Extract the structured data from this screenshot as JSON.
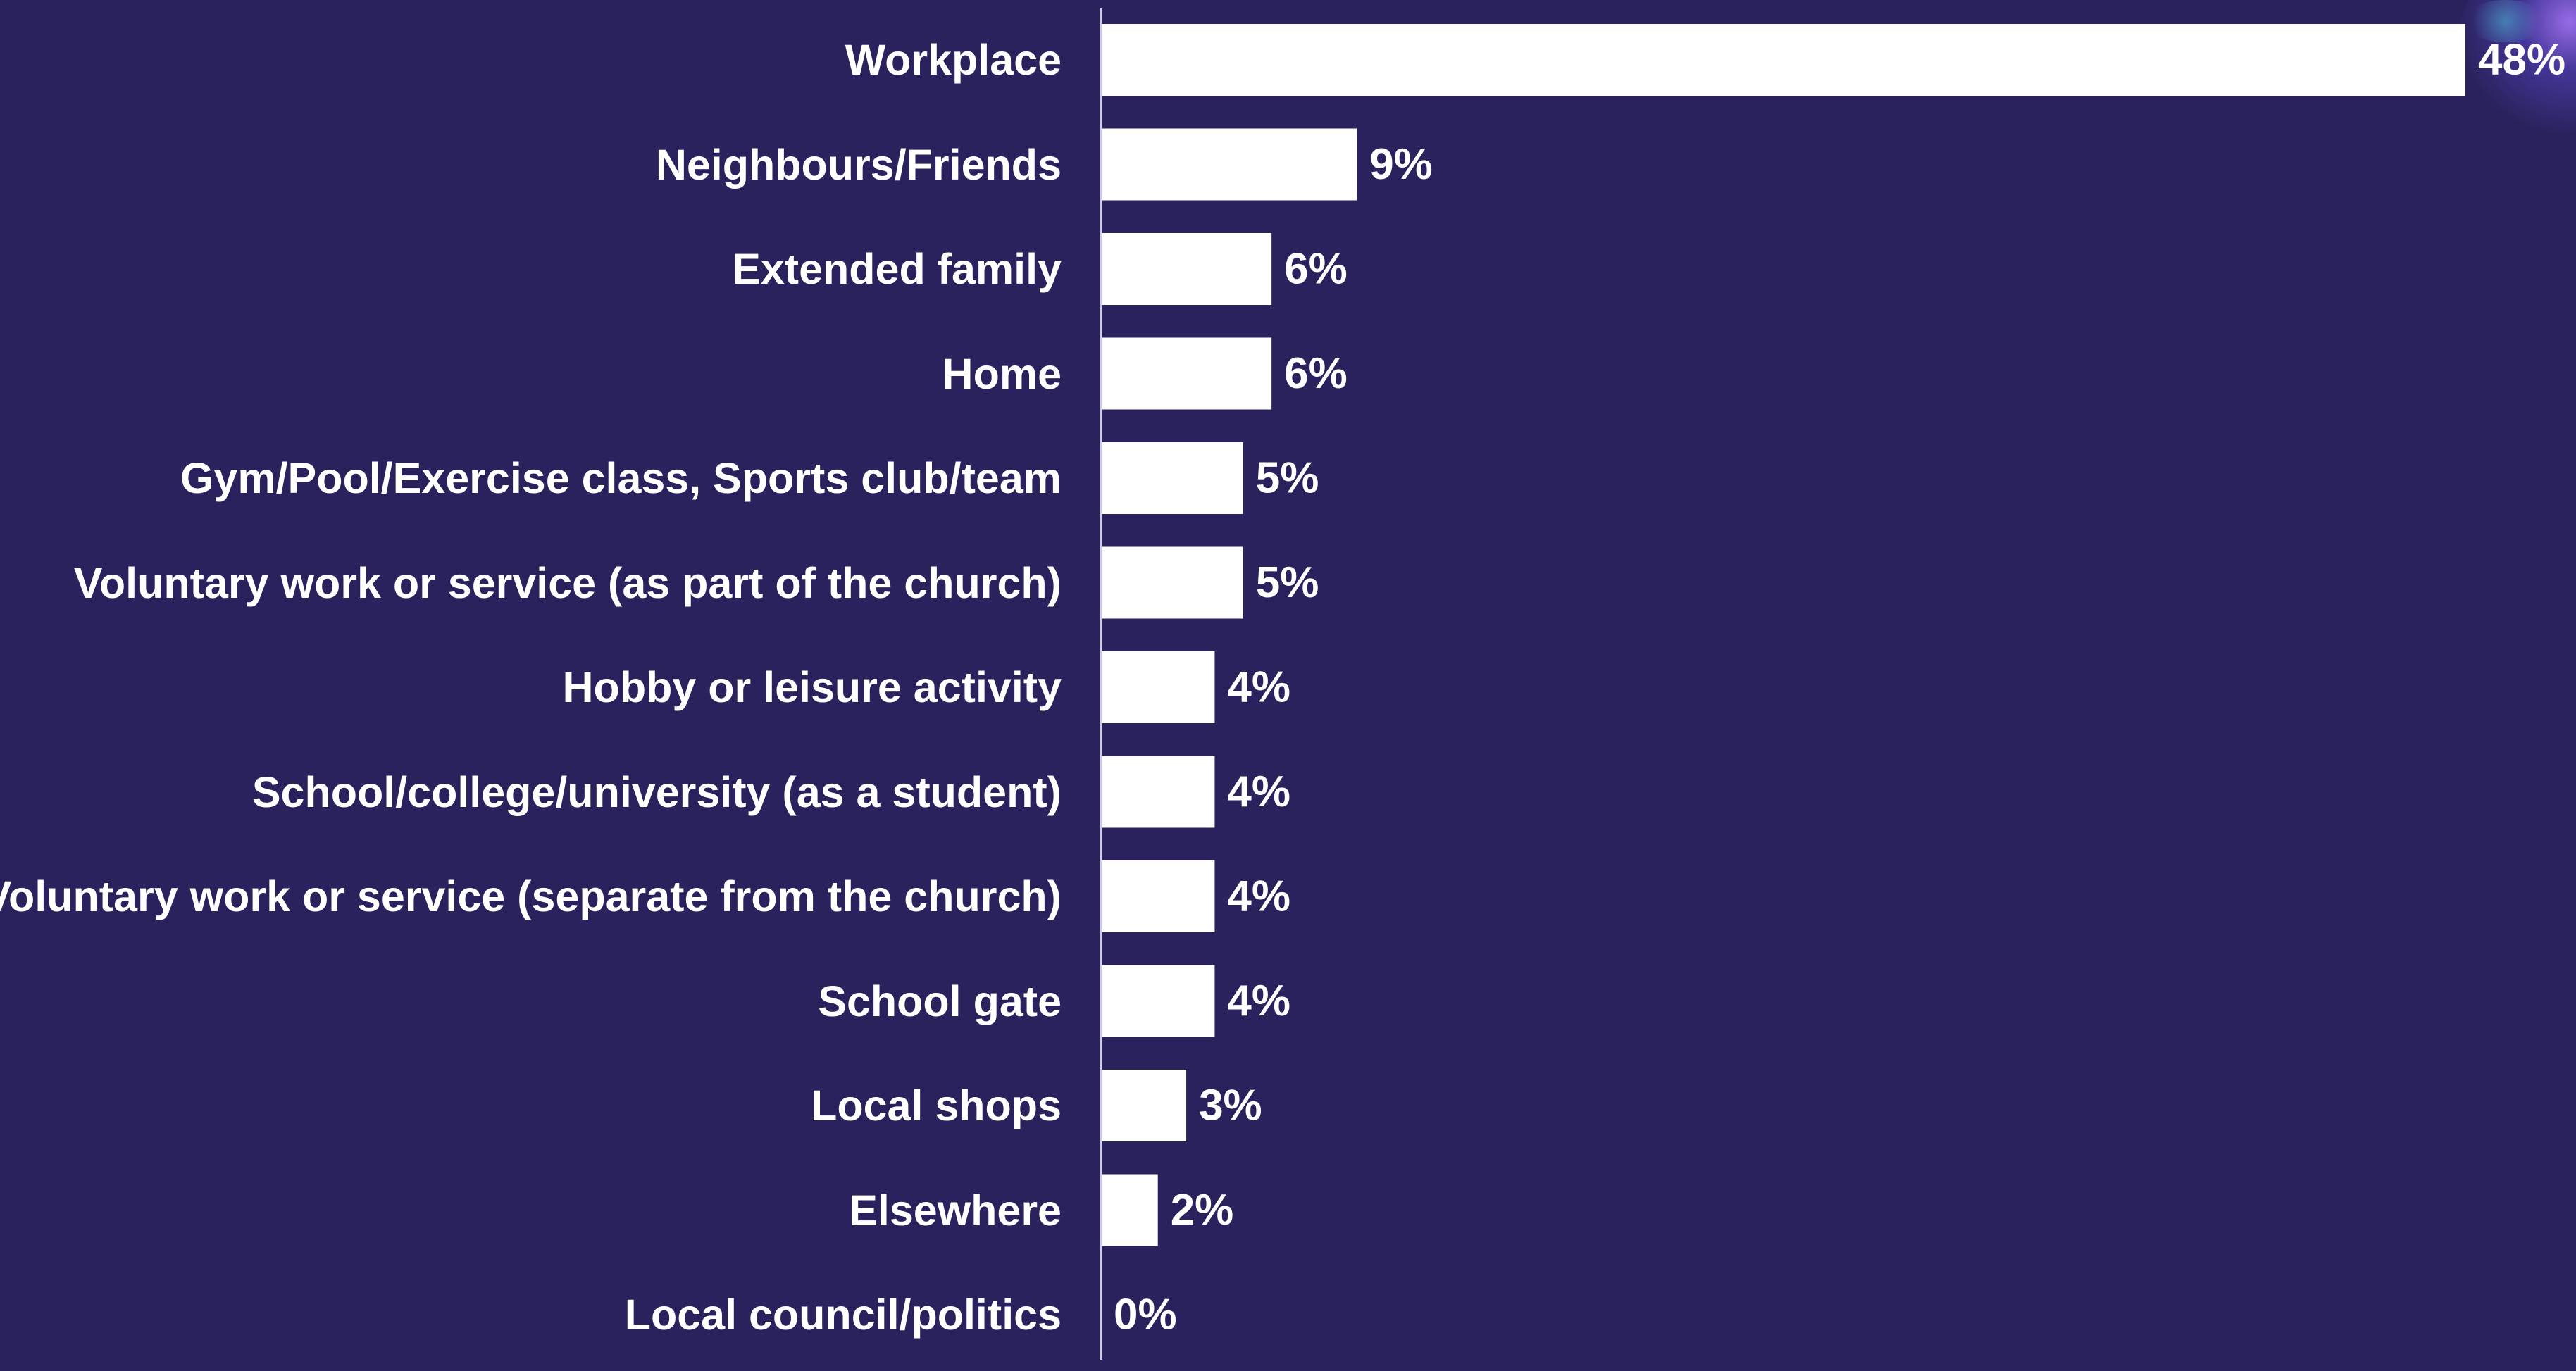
{
  "chart_data": {
    "type": "bar",
    "orientation": "horizontal",
    "categories": [
      "Workplace",
      "Neighbours/Friends",
      "Extended family",
      "Home ",
      "Gym/Pool/Exercise class, Sports club/team",
      "Voluntary work or service (as part of the church)",
      "Hobby or leisure activity",
      "School/college/university (as a student)",
      "Voluntary work or service (separate from the church)",
      "School gate",
      "Local shops",
      "Elsewhere",
      "Local council/politics"
    ],
    "values": [
      48,
      9,
      6,
      6,
      5,
      5,
      4,
      4,
      4,
      4,
      3,
      2,
      0
    ],
    "value_labels": [
      "48%",
      "9%",
      "6%",
      "6%",
      "5%",
      "5%",
      "4%",
      "4%",
      "4%",
      "4%",
      "3%",
      "2%",
      "0%"
    ],
    "xlim": [
      0,
      48
    ],
    "grid": false,
    "legend": "none",
    "colors": {
      "background": "#29225c",
      "bar": "#ffffff",
      "text": "#ffffff",
      "axis": "#cfcbe6"
    }
  }
}
